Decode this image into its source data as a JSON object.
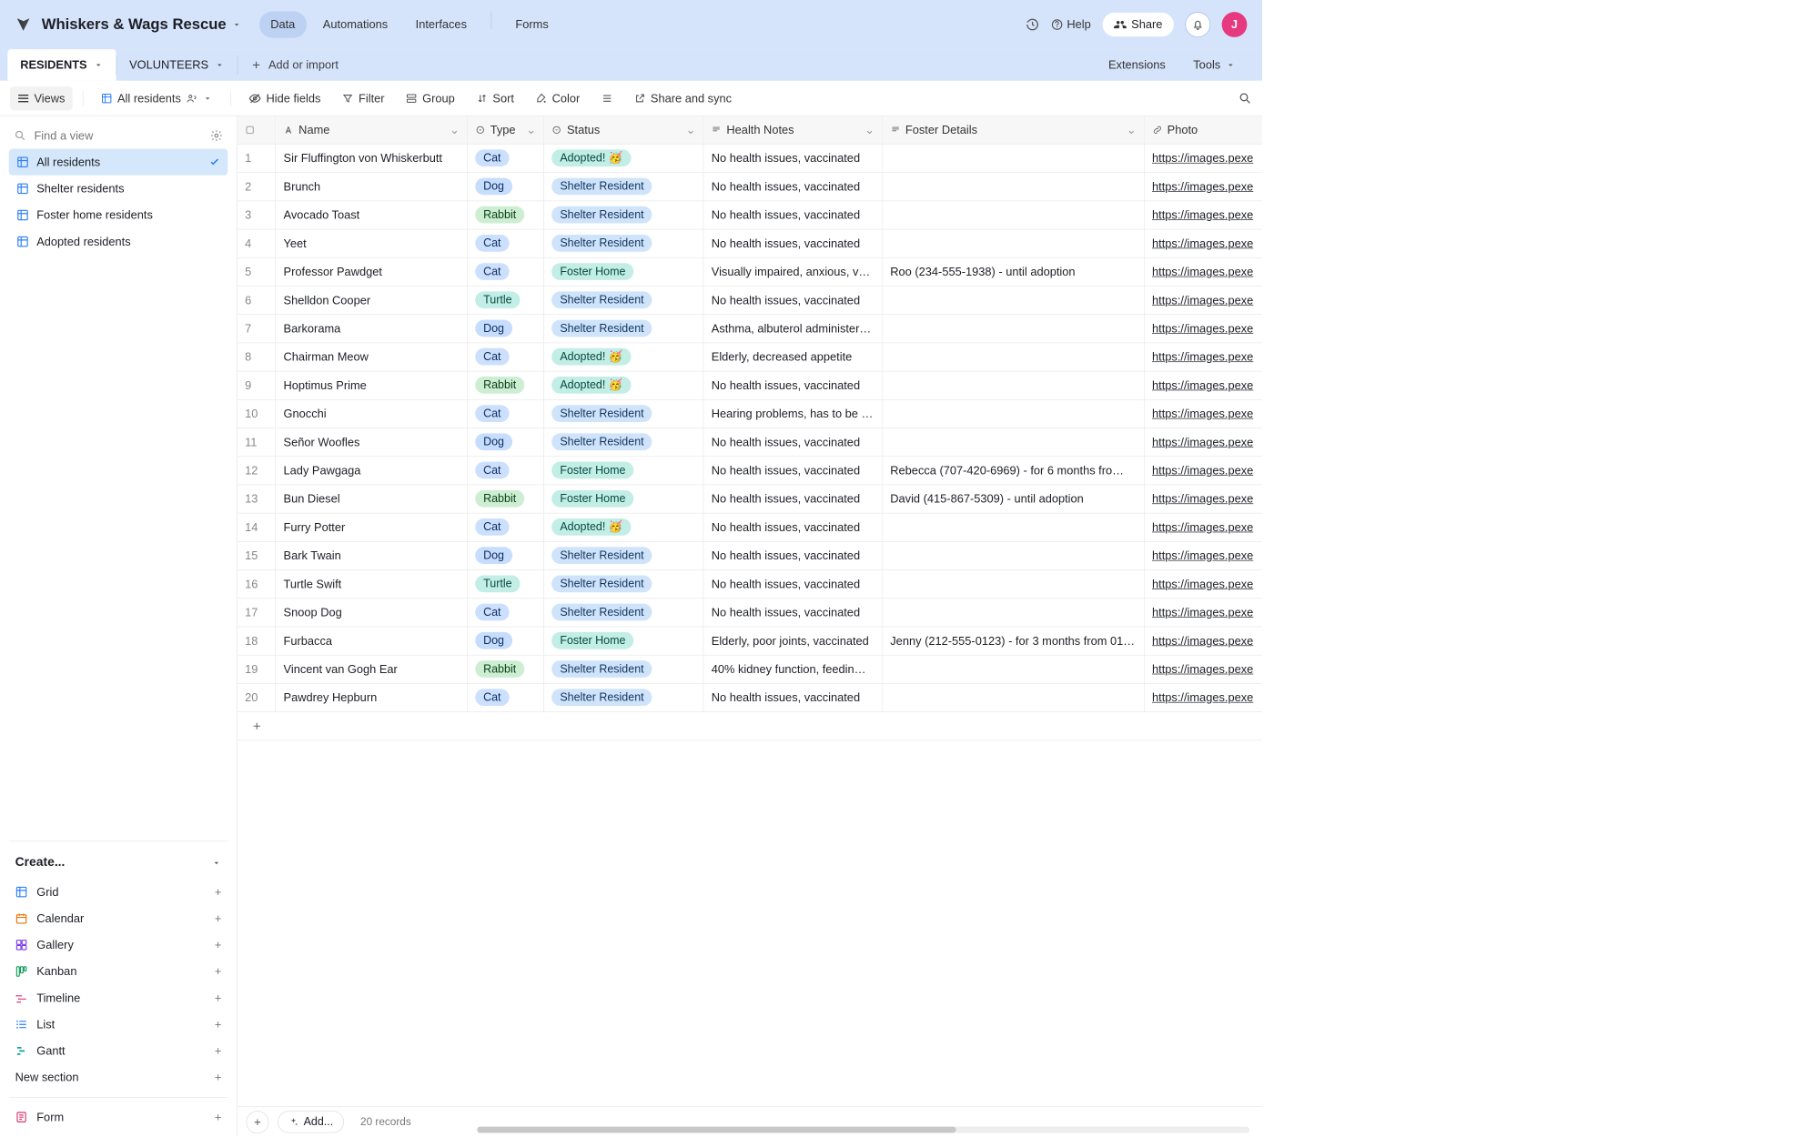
{
  "colors": {
    "header_bg": "#d5e3fb",
    "accent_blue": "#2d7ff9",
    "avatar_bg": "#e6397f"
  },
  "header": {
    "base_name": "Whiskers & Wags Rescue",
    "nav": [
      "Data",
      "Automations",
      "Interfaces",
      "Forms"
    ],
    "active_nav": 0,
    "help": "Help",
    "share": "Share",
    "avatar_initial": "J"
  },
  "tables_bar": {
    "tabs": [
      "RESIDENTS",
      "VOLUNTEERS"
    ],
    "active": 0,
    "add_import": "Add or import",
    "extensions": "Extensions",
    "tools": "Tools"
  },
  "toolbar": {
    "views": "Views",
    "view_name": "All residents",
    "hide_fields": "Hide fields",
    "filter": "Filter",
    "group": "Group",
    "sort": "Sort",
    "color": "Color",
    "share_sync": "Share and sync"
  },
  "sidebar": {
    "find_placeholder": "Find a view",
    "views": [
      {
        "label": "All residents",
        "active": true
      },
      {
        "label": "Shelter residents",
        "active": false
      },
      {
        "label": "Foster home residents",
        "active": false
      },
      {
        "label": "Adopted residents",
        "active": false
      }
    ],
    "create_header": "Create...",
    "create_items": [
      {
        "label": "Grid",
        "color": "#2d7ff9"
      },
      {
        "label": "Calendar",
        "color": "#e87503"
      },
      {
        "label": "Gallery",
        "color": "#7c39ed"
      },
      {
        "label": "Kanban",
        "color": "#0f9d58"
      },
      {
        "label": "Timeline",
        "color": "#d73a6b"
      },
      {
        "label": "List",
        "color": "#2d7ff9"
      },
      {
        "label": "Gantt",
        "color": "#0fa2a0"
      }
    ],
    "new_section": "New section",
    "form": "Form"
  },
  "grid": {
    "columns": [
      "Name",
      "Type",
      "Status",
      "Health Notes",
      "Foster Details",
      "Photo"
    ],
    "photo_link_text": "https://images.pexe",
    "type_styles": {
      "Cat": "pill-cat",
      "Dog": "pill-dog",
      "Rabbit": "pill-rabbit",
      "Turtle": "pill-turtle"
    },
    "status_styles": {
      "Adopted! 🥳": "pill-adopted",
      "Shelter Resident": "pill-shelter",
      "Foster Home": "pill-foster"
    },
    "rows": [
      {
        "n": 1,
        "name": "Sir Fluffington von Whiskerbutt",
        "type": "Cat",
        "status": "Adopted! 🥳",
        "health": "No health issues, vaccinated",
        "foster": ""
      },
      {
        "n": 2,
        "name": "Brunch",
        "type": "Dog",
        "status": "Shelter Resident",
        "health": "No health issues, vaccinated",
        "foster": ""
      },
      {
        "n": 3,
        "name": "Avocado Toast",
        "type": "Rabbit",
        "status": "Shelter Resident",
        "health": "No health issues, vaccinated",
        "foster": ""
      },
      {
        "n": 4,
        "name": "Yeet",
        "type": "Cat",
        "status": "Shelter Resident",
        "health": "No health issues, vaccinated",
        "foster": ""
      },
      {
        "n": 5,
        "name": "Professor Pawdget",
        "type": "Cat",
        "status": "Foster Home",
        "health": "Visually impaired, anxious, v…",
        "foster": "Roo (234-555-1938) - until adoption"
      },
      {
        "n": 6,
        "name": "Shelldon Cooper",
        "type": "Turtle",
        "status": "Shelter Resident",
        "health": "No health issues, vaccinated",
        "foster": ""
      },
      {
        "n": 7,
        "name": "Barkorama",
        "type": "Dog",
        "status": "Shelter Resident",
        "health": "Asthma, albuterol administer…",
        "foster": ""
      },
      {
        "n": 8,
        "name": "Chairman Meow",
        "type": "Cat",
        "status": "Adopted! 🥳",
        "health": "Elderly, decreased appetite",
        "foster": ""
      },
      {
        "n": 9,
        "name": "Hoptimus Prime",
        "type": "Rabbit",
        "status": "Adopted! 🥳",
        "health": "No health issues, vaccinated",
        "foster": ""
      },
      {
        "n": 10,
        "name": "Gnocchi",
        "type": "Cat",
        "status": "Shelter Resident",
        "health": "Hearing problems, has to be …",
        "foster": ""
      },
      {
        "n": 11,
        "name": "Señor Woofles",
        "type": "Dog",
        "status": "Shelter Resident",
        "health": "No health issues, vaccinated",
        "foster": ""
      },
      {
        "n": 12,
        "name": "Lady Pawgaga",
        "type": "Cat",
        "status": "Foster Home",
        "health": "No health issues, vaccinated",
        "foster": "Rebecca (707-420-6969) - for 6 months fro…"
      },
      {
        "n": 13,
        "name": "Bun Diesel",
        "type": "Rabbit",
        "status": "Foster Home",
        "health": "No health issues, vaccinated",
        "foster": "David (415-867-5309) - until adoption"
      },
      {
        "n": 14,
        "name": "Furry Potter",
        "type": "Cat",
        "status": "Adopted! 🥳",
        "health": "No health issues, vaccinated",
        "foster": ""
      },
      {
        "n": 15,
        "name": "Bark Twain",
        "type": "Dog",
        "status": "Shelter Resident",
        "health": "No health issues, vaccinated",
        "foster": ""
      },
      {
        "n": 16,
        "name": "Turtle Swift",
        "type": "Turtle",
        "status": "Shelter Resident",
        "health": "No health issues, vaccinated",
        "foster": ""
      },
      {
        "n": 17,
        "name": "Snoop Dog",
        "type": "Cat",
        "status": "Shelter Resident",
        "health": "No health issues, vaccinated",
        "foster": ""
      },
      {
        "n": 18,
        "name": "Furbacca",
        "type": "Dog",
        "status": "Foster Home",
        "health": "Elderly, poor joints, vaccinated",
        "foster": "Jenny (212-555-0123) - for 3 months from 01…"
      },
      {
        "n": 19,
        "name": "Vincent van Gogh Ear",
        "type": "Rabbit",
        "status": "Shelter Resident",
        "health": "40% kidney function, feedin…",
        "foster": ""
      },
      {
        "n": 20,
        "name": "Pawdrey Hepburn",
        "type": "Cat",
        "status": "Shelter Resident",
        "health": "No health issues, vaccinated",
        "foster": ""
      }
    ],
    "bottom": {
      "add_label": "Add...",
      "records_count": "20 records"
    },
    "hscroll_thumb_pct": 62
  }
}
